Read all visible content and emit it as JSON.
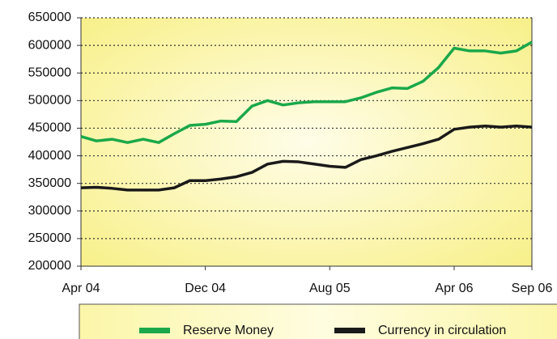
{
  "chart_data": {
    "type": "line",
    "categories": [
      "Apr 04",
      null,
      null,
      null,
      null,
      null,
      null,
      null,
      "Dec 04",
      null,
      null,
      null,
      null,
      null,
      null,
      null,
      "Aug 05",
      null,
      null,
      null,
      null,
      null,
      null,
      null,
      "Apr 06",
      null,
      null,
      null,
      null,
      "Sep 06"
    ],
    "series": [
      {
        "name": "Reserve Money",
        "color": "#1aa84a",
        "values": [
          435000,
          427000,
          430000,
          424000,
          430000,
          424000,
          440000,
          455000,
          457000,
          463000,
          462000,
          490000,
          500000,
          492000,
          496000,
          498000,
          498000,
          498000,
          505000,
          515000,
          523000,
          522000,
          535000,
          560000,
          595000,
          590000,
          590000,
          586000,
          590000,
          606000
        ]
      },
      {
        "name": "Currency in circulation",
        "color": "#1a1a1a",
        "values": [
          342000,
          343000,
          341000,
          338000,
          338000,
          338000,
          342000,
          355000,
          355000,
          358000,
          362000,
          370000,
          385000,
          390000,
          389000,
          385000,
          381000,
          379000,
          393000,
          400000,
          408000,
          415000,
          422000,
          430000,
          448000,
          452000,
          454000,
          452000,
          454000,
          452000
        ]
      }
    ],
    "ylim": [
      200000,
      650000
    ],
    "yticks": [
      200000,
      250000,
      300000,
      350000,
      400000,
      450000,
      500000,
      550000,
      600000,
      650000
    ],
    "grid": true,
    "legend": "bottom"
  }
}
